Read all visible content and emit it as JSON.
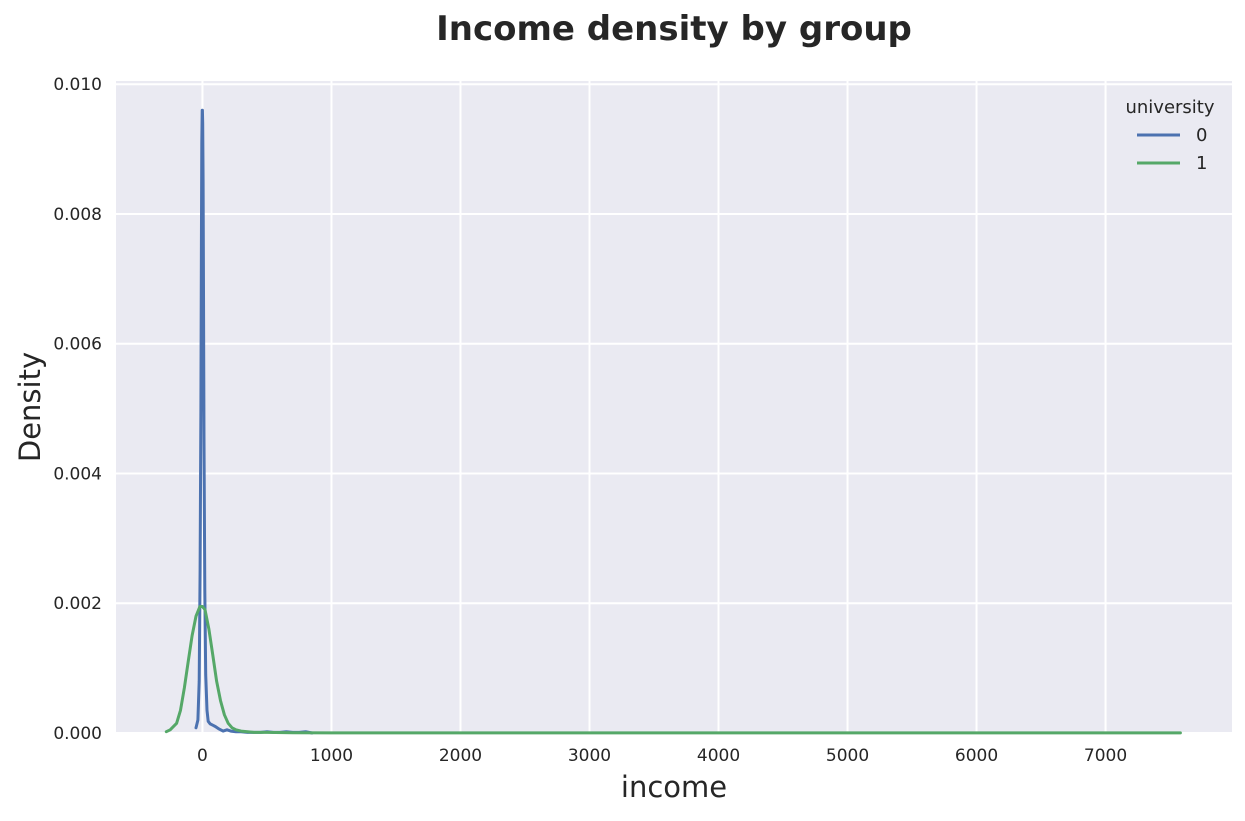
{
  "chart_data": {
    "type": "line",
    "title": "Income density by group",
    "xlabel": "income",
    "ylabel": "Density",
    "xlim": [
      -670,
      7980
    ],
    "ylim": [
      0,
      0.01005
    ],
    "xticks": [
      0,
      1000,
      2000,
      3000,
      4000,
      5000,
      6000,
      7000
    ],
    "xtick_labels": [
      "0",
      "1000",
      "2000",
      "3000",
      "4000",
      "5000",
      "6000",
      "7000"
    ],
    "yticks": [
      0,
      0.002,
      0.004,
      0.006,
      0.008,
      0.01
    ],
    "ytick_labels": [
      "0.000",
      "0.002",
      "0.004",
      "0.006",
      "0.008",
      "0.010"
    ],
    "grid": true,
    "legend": {
      "title": "university",
      "placement": "top-right"
    },
    "series": [
      {
        "name": "0",
        "color": "#4c72b0",
        "x": [
          -50,
          -35,
          -25,
          -18,
          -12,
          -8,
          -5,
          -2,
          0,
          2,
          5,
          8,
          12,
          18,
          25,
          35,
          45,
          60,
          80,
          100,
          130,
          160,
          190,
          220,
          260,
          300,
          350,
          400,
          450,
          500,
          550,
          600,
          650,
          700,
          750,
          800,
          850
        ],
        "y": [
          8e-05,
          0.0002,
          0.0008,
          0.0025,
          0.005,
          0.0075,
          0.0091,
          0.0096,
          0.0096,
          0.0094,
          0.0085,
          0.0068,
          0.0045,
          0.0022,
          0.0009,
          0.00035,
          0.00018,
          0.00014,
          0.00012,
          0.0001,
          6e-05,
          3e-05,
          5e-05,
          3e-05,
          2e-05,
          2e-05,
          1e-05,
          1e-05,
          1e-05,
          2e-05,
          1e-05,
          1e-05,
          2e-05,
          1e-05,
          1e-05,
          2e-05,
          0.0
        ]
      },
      {
        "name": "1",
        "color": "#55a868",
        "x": [
          -280,
          -250,
          -200,
          -170,
          -140,
          -110,
          -80,
          -50,
          -20,
          0,
          20,
          50,
          80,
          110,
          140,
          170,
          200,
          230,
          260,
          300,
          350,
          400,
          500,
          700,
          1000,
          2000,
          3000,
          4000,
          5000,
          6000,
          7000,
          7580
        ],
        "y": [
          2e-05,
          5e-05,
          0.00015,
          0.00035,
          0.0007,
          0.0011,
          0.0015,
          0.0018,
          0.00195,
          0.00195,
          0.0019,
          0.0016,
          0.0012,
          0.0008,
          0.0005,
          0.00028,
          0.00015,
          8e-05,
          5e-05,
          3e-05,
          2e-05,
          1e-05,
          1e-05,
          5e-06,
          2e-06,
          1e-06,
          1e-06,
          1e-06,
          1e-06,
          1e-06,
          1e-06,
          1e-06
        ]
      }
    ]
  }
}
